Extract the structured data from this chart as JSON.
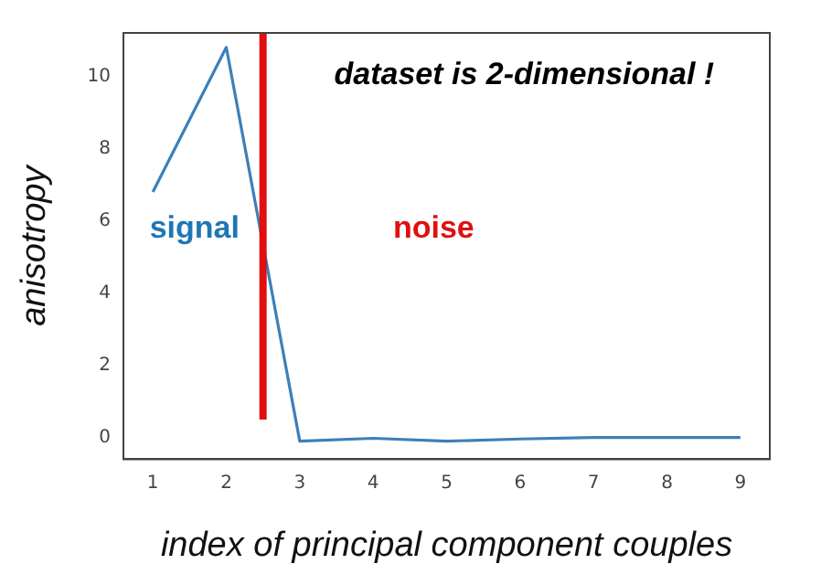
{
  "chart_data": {
    "type": "line",
    "xlabel": "index of principal component couples",
    "ylabel": "anisotropy",
    "x": [
      1,
      2,
      3,
      4,
      5,
      6,
      7,
      8,
      9
    ],
    "series": [
      {
        "color": "#3d80b8",
        "values": [
          6.8,
          10.8,
          -0.1,
          -0.02,
          -0.1,
          -0.04,
          0,
          0,
          0
        ]
      }
    ],
    "xlim": [
      0.6,
      9.4
    ],
    "xticks": [
      1,
      2,
      3,
      4,
      5,
      6,
      7,
      8,
      9
    ],
    "ylim": [
      -0.6,
      11.2
    ],
    "yticks": [
      0,
      2,
      4,
      6,
      8,
      10
    ],
    "ref_lines": [
      {
        "axis": "x",
        "value": 2.5,
        "color": "#e01010"
      }
    ],
    "annotations": [
      "dataset is 2-dimensional !",
      "signal",
      "noise"
    ],
    "grid": false,
    "legend": false,
    "marker": "none",
    "line_style": "solid"
  }
}
